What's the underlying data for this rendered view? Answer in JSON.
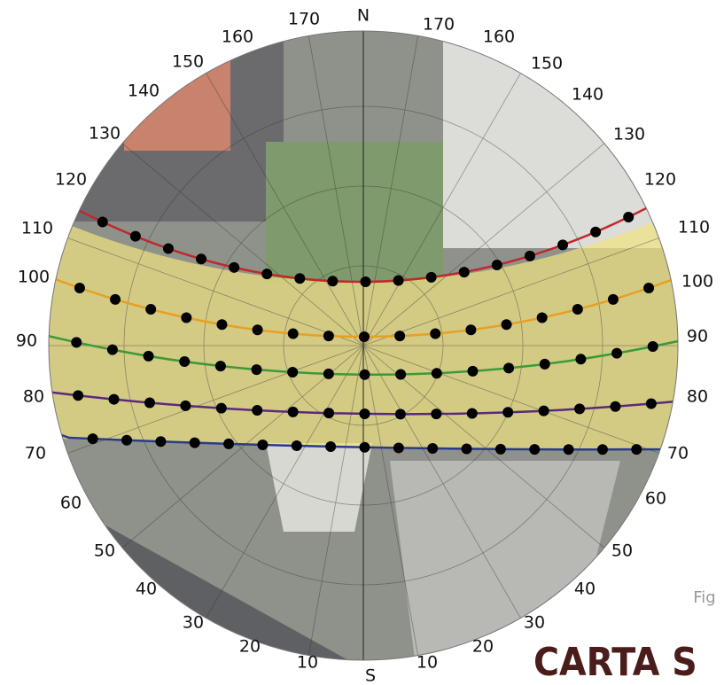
{
  "compass": {
    "north": "N",
    "south": "S"
  },
  "left_labels": [
    170,
    160,
    150,
    140,
    130,
    120,
    110,
    100,
    90,
    80,
    70,
    60,
    50,
    40,
    30,
    20,
    10
  ],
  "right_labels": [
    170,
    160,
    150,
    140,
    130,
    120,
    110,
    100,
    90,
    80,
    70,
    60,
    50,
    40,
    30,
    20,
    10
  ],
  "caption": "Fig",
  "brand": "CARTA S"
}
